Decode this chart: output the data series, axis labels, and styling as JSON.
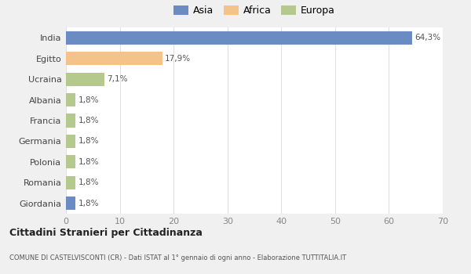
{
  "categories": [
    "India",
    "Egitto",
    "Ucraina",
    "Albania",
    "Francia",
    "Germania",
    "Polonia",
    "Romania",
    "Giordania"
  ],
  "values": [
    64.3,
    17.9,
    7.1,
    1.8,
    1.8,
    1.8,
    1.8,
    1.8,
    1.8
  ],
  "labels": [
    "64,3%",
    "17,9%",
    "7,1%",
    "1,8%",
    "1,8%",
    "1,8%",
    "1,8%",
    "1,8%",
    "1,8%"
  ],
  "colors": [
    "#6b8cc2",
    "#f5c28a",
    "#b5c98e",
    "#b5c98e",
    "#b5c98e",
    "#b5c98e",
    "#b5c98e",
    "#b5c98e",
    "#6b8cc2"
  ],
  "legend_labels": [
    "Asia",
    "Africa",
    "Europa"
  ],
  "legend_colors": [
    "#6b8cc2",
    "#f5c28a",
    "#b5c98e"
  ],
  "title": "Cittadini Stranieri per Cittadinanza",
  "subtitle": "COMUNE DI CASTELVISCONTI (CR) - Dati ISTAT al 1° gennaio di ogni anno - Elaborazione TUTTITALIA.IT",
  "xlim": [
    0,
    70
  ],
  "xticks": [
    0,
    10,
    20,
    30,
    40,
    50,
    60,
    70
  ],
  "background_color": "#f0f0f0",
  "plot_background": "#ffffff",
  "bar_height": 0.65,
  "grid_color": "#e0e0e0"
}
